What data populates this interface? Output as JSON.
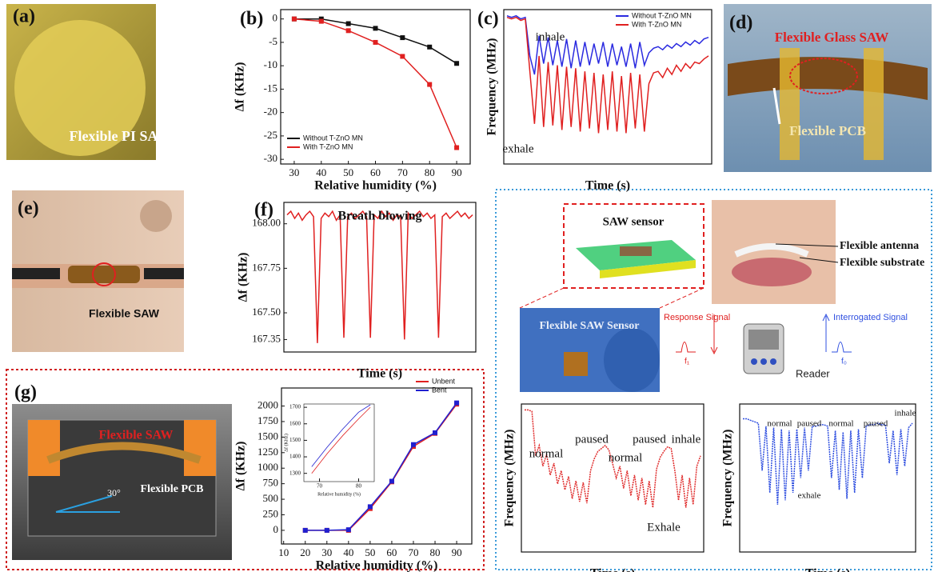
{
  "panel_a": {
    "label": "(a)",
    "caption": "Flexible PI SAW"
  },
  "panel_d": {
    "label": "(d)",
    "title": "Flexible Glass SAW",
    "caption": "Flexible PCB"
  },
  "panel_e": {
    "label": "(e)",
    "caption": "Flexible SAW"
  },
  "panel_g": {
    "label": "(g)",
    "title": "Flexible SAW",
    "caption": "Flexible PCB",
    "angle": "30°"
  },
  "diagram": {
    "sensor": "SAW sensor",
    "antenna": "Flexible antenna",
    "substrate": "Flexible substrate",
    "photo": "Flexible SAW Sensor",
    "response": "Response Signal",
    "f1": "f₁",
    "interrogated": "Interrogated Signal",
    "f0": "f₀",
    "reader": "Reader"
  },
  "chart_data": [
    {
      "type": "line",
      "label": "(b)",
      "x_label": "Relative humidity (%)",
      "y_label": "Δf (KHz)",
      "legend": "lower left",
      "markers": true,
      "x": [
        30,
        40,
        50,
        60,
        70,
        80,
        90
      ],
      "xlim": [
        25,
        95
      ],
      "xticks": [
        30,
        40,
        50,
        60,
        70,
        80,
        90
      ],
      "ylim": [
        -31,
        2
      ],
      "yticks": [
        0,
        -5,
        -10,
        -15,
        -20,
        -25,
        -30
      ],
      "series": [
        {
          "name": "Without T-ZnO MN",
          "color": "#111111",
          "values": [
            0,
            0,
            -1,
            -2,
            -4,
            -6,
            -9.5
          ]
        },
        {
          "name": "With T-ZnO MN",
          "color": "#e02020",
          "values": [
            0,
            -0.5,
            -2.5,
            -5,
            -8,
            -14,
            -27.5
          ]
        }
      ]
    },
    {
      "type": "line",
      "label": "(c)",
      "x_label": "Time (s)",
      "y_label": "Frequency (MHz)",
      "legend": "upper right",
      "annotations": [
        "inhale",
        "exhale"
      ],
      "ylim": [
        0,
        10
      ],
      "series": [
        {
          "name": "Without T-ZnO MN",
          "color": "#2a2ae0",
          "values": [
            9.6,
            9.5,
            9.6,
            9.4,
            9.5,
            7.0,
            5.8,
            8.3,
            6.5,
            8.2,
            6.4,
            8.0,
            6.3,
            8.1,
            6.2,
            8.0,
            6.3,
            7.9,
            6.4,
            7.8,
            6.5,
            7.9,
            6.3,
            7.8,
            6.4,
            7.6,
            6.3,
            7.8,
            6.2,
            7.9,
            6.4,
            7.2,
            7.5,
            7.6,
            7.4,
            7.7,
            7.5,
            7.8,
            7.6,
            7.9,
            7.7,
            8.0,
            7.8,
            8.1,
            8.2
          ]
        },
        {
          "name": "With T-ZnO MN",
          "color": "#e02020",
          "values": [
            9.5,
            9.4,
            9.5,
            9.3,
            9.4,
            6.0,
            2.6,
            7.0,
            2.4,
            6.6,
            2.5,
            6.4,
            2.2,
            6.3,
            2.4,
            6.2,
            2.1,
            6.0,
            2.3,
            5.9,
            2.0,
            5.8,
            2.2,
            6.0,
            2.1,
            5.7,
            2.0,
            5.9,
            2.3,
            5.8,
            2.1,
            5.2,
            5.9,
            6.0,
            5.6,
            6.2,
            5.8,
            6.4,
            6.0,
            6.5,
            6.2,
            6.6,
            6.5,
            6.8,
            7.0
          ]
        }
      ]
    },
    {
      "type": "line",
      "label": "(f)",
      "title": "Breath blowing",
      "x_label": "Time (s)",
      "y_label": "Δf (KHz)",
      "ylim": [
        167.28,
        168.12
      ],
      "yticks": [
        {
          "value": 168,
          "label": "168.00"
        },
        167.75,
        {
          "value": 167.5,
          "label": "167.50"
        },
        167.35
      ],
      "series": [
        {
          "color": "#e02020",
          "values": [
            168.05,
            168.07,
            168.03,
            168.06,
            168.02,
            168.05,
            168.07,
            168.04,
            167.33,
            168.03,
            168.06,
            168.04,
            168.07,
            168.02,
            168.05,
            167.36,
            168.04,
            168.06,
            168.03,
            168.05,
            168.07,
            168.04,
            167.36,
            168.05,
            168.03,
            168.07,
            168.04,
            168.06,
            168.02,
            168.05,
            168.04,
            167.35,
            168.06,
            168.03,
            168.05,
            168.07,
            168.04,
            168.06,
            168.03,
            168.05,
            167.36,
            168.04,
            168.06,
            168.03,
            168.05,
            168.07,
            168.04,
            168.06,
            168.03,
            168.05
          ]
        }
      ]
    },
    {
      "type": "line",
      "x_label": "Relative humidity (%)",
      "y_label": "Δf (KHz)",
      "legend": "upper right",
      "markers": true,
      "x": [
        20,
        30,
        40,
        50,
        60,
        70,
        80,
        90
      ],
      "xlim": [
        9,
        97
      ],
      "xticks": [
        10,
        20,
        30,
        40,
        50,
        60,
        70,
        80,
        90
      ],
      "ylim": [
        -220,
        2290
      ],
      "yticks": [
        0,
        250,
        500,
        750,
        1000,
        1250,
        1500,
        1750,
        2000
      ],
      "series": [
        {
          "name": "Unbent",
          "color": "#e02020",
          "values": [
            0,
            0,
            0,
            350,
            780,
            1350,
            1560,
            2030
          ]
        },
        {
          "name": "Bent",
          "color": "#2020d0",
          "values": [
            0,
            0,
            10,
            380,
            790,
            1380,
            1570,
            2050
          ]
        }
      ]
    },
    {
      "type": "line",
      "x_label": "Relative humidity (%)",
      "y_label": "Δf (KHz)",
      "x": [
        68,
        72,
        76,
        80,
        83
      ],
      "xlim": [
        66,
        84
      ],
      "xticks": [
        70,
        80
      ],
      "ylim": [
        1250,
        1720
      ],
      "yticks": [
        1300,
        1400,
        1500,
        1600,
        1700
      ],
      "series": [
        {
          "color": "#e02020",
          "values": [
            1300,
            1420,
            1530,
            1630,
            1700
          ]
        },
        {
          "color": "#2020d0",
          "values": [
            1340,
            1460,
            1570,
            1670,
            1715
          ]
        }
      ]
    },
    {
      "type": "line",
      "x_label": "Time (s)",
      "y_label": "Frequency (MHz)",
      "annotations": [
        "normal",
        "paused",
        "normal",
        "paused",
        "inhale",
        "Exhale"
      ],
      "ylim": [
        0,
        10
      ],
      "dotted": true,
      "series": [
        {
          "color": "#e03030",
          "values": [
            9.6,
            9.6,
            9.5,
            6.5,
            7.2,
            5.8,
            6.6,
            5.2,
            6.0,
            4.6,
            5.5,
            4.2,
            5.1,
            3.6,
            4.8,
            3.4,
            4.7,
            3.3,
            5.5,
            6.3,
            6.8,
            7.0,
            7.2,
            6.9,
            6.0,
            5.0,
            5.8,
            4.3,
            5.5,
            3.8,
            5.2,
            3.5,
            5.0,
            3.2,
            4.8,
            3.0,
            5.6,
            6.4,
            6.8,
            7.1,
            7.0,
            5.5,
            3.5,
            5.2,
            3.0,
            5.0,
            3.2,
            5.8,
            6.5
          ]
        }
      ]
    },
    {
      "type": "line",
      "x_label": "Time (s)",
      "y_label": "Frequency (MHz)",
      "annotations": [
        "normal",
        "paused",
        "normal",
        "paused",
        "inhale",
        "exhale"
      ],
      "ylim": [
        0,
        10
      ],
      "dotted": true,
      "series": [
        {
          "color": "#3050e0",
          "values": [
            9.0,
            9.0,
            8.9,
            8.8,
            8.7,
            5.5,
            8.5,
            4.0,
            8.4,
            3.2,
            8.3,
            3.5,
            8.2,
            4.0,
            8.3,
            5.0,
            8.4,
            5.5,
            8.5,
            8.5,
            8.6,
            8.6,
            8.5,
            5.0,
            8.2,
            4.2,
            8.1,
            3.6,
            8.2,
            4.0,
            8.3,
            5.0,
            8.5,
            8.6,
            8.6,
            8.7,
            8.6,
            8.6,
            6.0,
            8.2,
            5.2,
            8.3,
            5.8,
            8.4,
            8.7
          ]
        }
      ]
    }
  ]
}
